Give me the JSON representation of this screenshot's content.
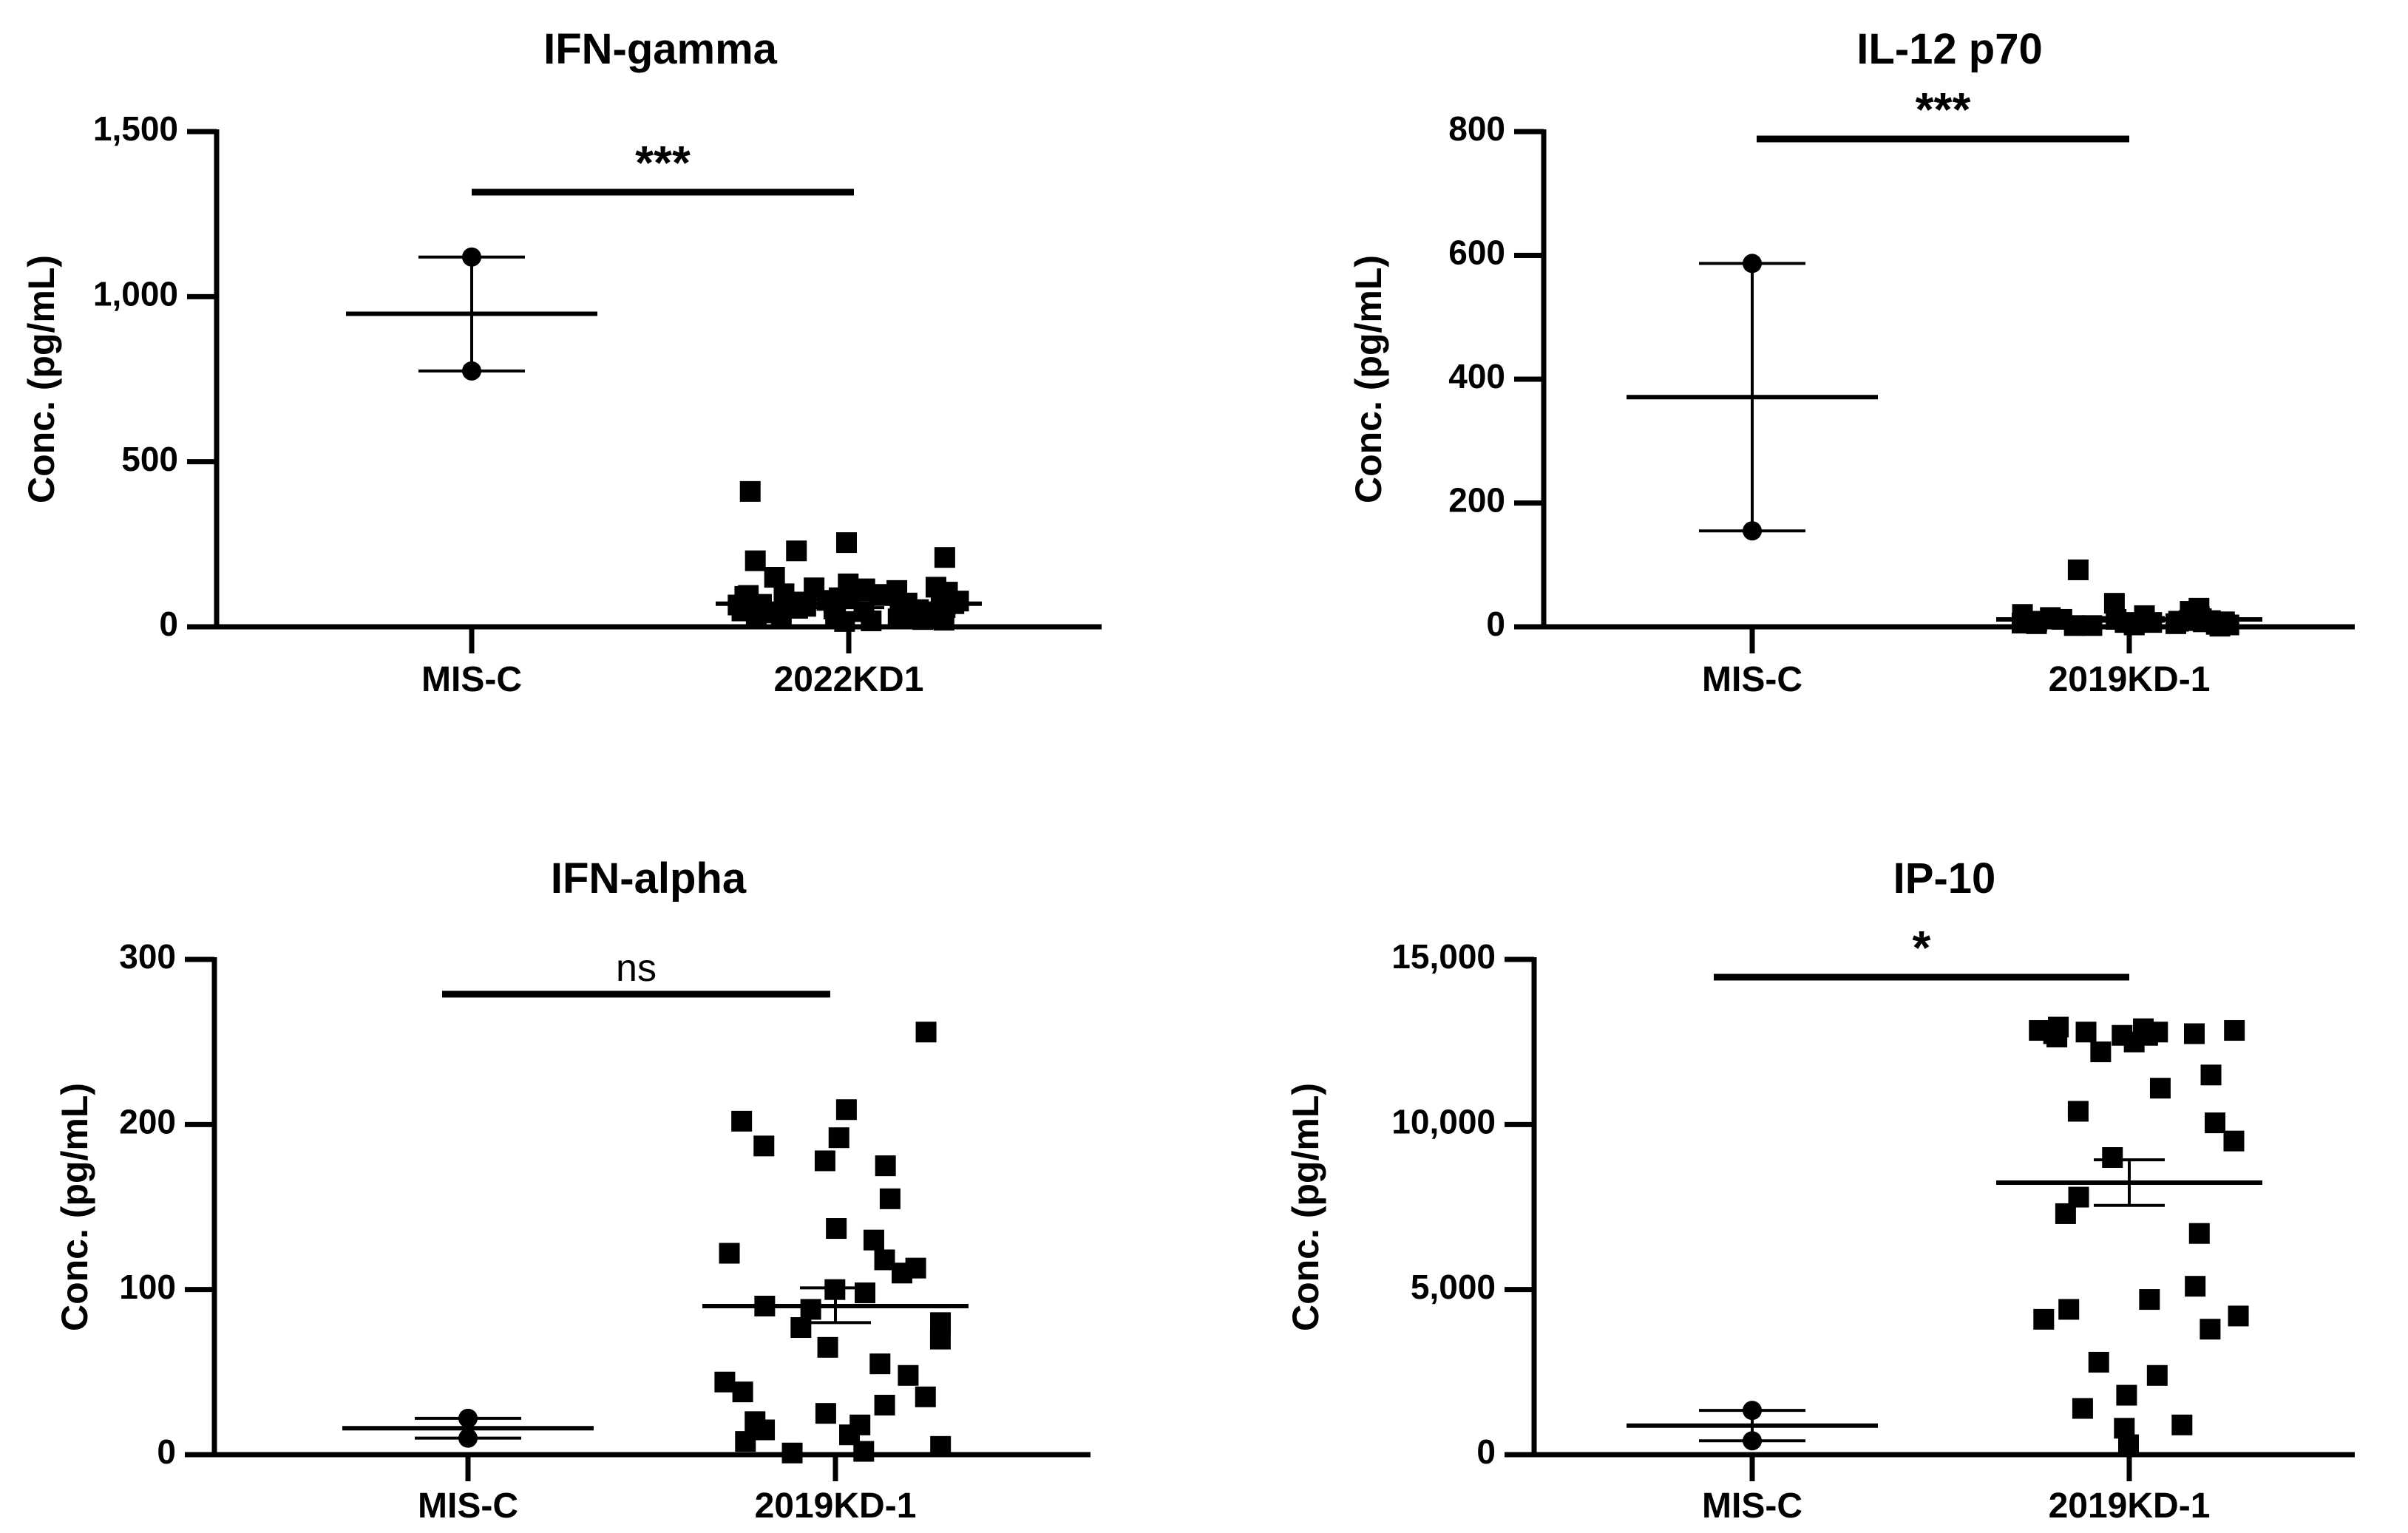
{
  "figure": {
    "background": "#ffffff",
    "ink": "#000000"
  },
  "chart_data": [
    {
      "type": "scatter",
      "title": "IFN-gamma",
      "xlabel": "",
      "ylabel": "Conc. (pg/mL)",
      "ylim": [
        0,
        1500
      ],
      "yticks": [
        0,
        500,
        1000,
        1500
      ],
      "ytick_labels": [
        "0",
        "500",
        "1,000",
        "1,500"
      ],
      "categories": [
        "MIS-C",
        "2022KD1"
      ],
      "significance": "***",
      "groups": [
        {
          "name": "MIS-C",
          "marker": "circle",
          "mean": 948,
          "error_low": 775,
          "error_high": 1120,
          "values": [
            1120,
            775
          ]
        },
        {
          "name": "2022KD1",
          "marker": "square",
          "mean": 70,
          "error_low": 58,
          "error_high": 82,
          "values": [
            410,
            255,
            230,
            210,
            200,
            150,
            130,
            120,
            118,
            115,
            110,
            105,
            100,
            98,
            95,
            92,
            90,
            88,
            85,
            82,
            80,
            78,
            75,
            72,
            70,
            68,
            66,
            64,
            62,
            60,
            58,
            56,
            54,
            52,
            50,
            48,
            46,
            44,
            42,
            40,
            38,
            36,
            34,
            32,
            30,
            28,
            26,
            24,
            22,
            20,
            18,
            16
          ]
        }
      ]
    },
    {
      "type": "scatter",
      "title": "IL-12 p70",
      "xlabel": "",
      "ylabel": "Conc. (pg/mL)",
      "ylim": [
        0,
        800
      ],
      "yticks": [
        0,
        200,
        400,
        600,
        800
      ],
      "ytick_labels": [
        "0",
        "200",
        "400",
        "600",
        "800"
      ],
      "categories": [
        "MIS-C",
        "2019KD-1"
      ],
      "significance": "***",
      "groups": [
        {
          "name": "MIS-C",
          "marker": "circle",
          "mean": 371,
          "error_low": 155,
          "error_high": 587,
          "values": [
            587,
            155
          ]
        },
        {
          "name": "2019KD-1",
          "marker": "square",
          "mean": 12,
          "error_low": 9,
          "error_high": 15,
          "values": [
            92,
            38,
            30,
            25,
            20,
            18,
            16,
            15,
            14,
            13,
            12,
            12,
            11,
            10,
            10,
            9,
            9,
            8,
            8,
            7,
            7,
            6,
            6,
            5,
            5,
            4,
            4,
            3,
            3,
            2,
            2,
            1
          ]
        }
      ]
    },
    {
      "type": "scatter",
      "title": "IFN-alpha",
      "xlabel": "",
      "ylabel": "Conc. (pg/mL)",
      "ylim": [
        0,
        300
      ],
      "yticks": [
        0,
        100,
        200,
        300
      ],
      "ytick_labels": [
        "0",
        "100",
        "200",
        "300"
      ],
      "categories": [
        "MIS-C",
        "2019KD-1"
      ],
      "significance": "ns",
      "groups": [
        {
          "name": "MIS-C",
          "marker": "circle",
          "mean": 16,
          "error_low": 10,
          "error_high": 22,
          "values": [
            22,
            10
          ]
        },
        {
          "name": "2019KD-1",
          "marker": "square",
          "mean": 90,
          "error_low": 80,
          "error_high": 101,
          "values": [
            256,
            209,
            202,
            192,
            187,
            178,
            175,
            155,
            137,
            130,
            122,
            118,
            113,
            110,
            100,
            98,
            90,
            88,
            80,
            77,
            70,
            65,
            55,
            48,
            44,
            38,
            35,
            30,
            25,
            20,
            18,
            15,
            12,
            8,
            5,
            2,
            1
          ]
        }
      ]
    },
    {
      "type": "scatter",
      "title": "IP-10",
      "xlabel": "",
      "ylabel": "Conc. (pg/mL)",
      "ylim": [
        0,
        15000
      ],
      "yticks": [
        0,
        5000,
        10000,
        15000
      ],
      "ytick_labels": [
        "0",
        "5,000",
        "10,000",
        "15,000"
      ],
      "categories": [
        "MIS-C",
        "2019KD-1"
      ],
      "significance": "*",
      "groups": [
        {
          "name": "MIS-C",
          "marker": "circle",
          "mean": 880,
          "error_low": 420,
          "error_high": 1340,
          "values": [
            1340,
            420
          ]
        },
        {
          "name": "2019KD-1",
          "marker": "square",
          "mean": 8240,
          "error_low": 7550,
          "error_high": 8930,
          "values": [
            12950,
            12900,
            12850,
            12850,
            12800,
            12800,
            12750,
            12750,
            12700,
            12700,
            12650,
            12500,
            12200,
            11500,
            11100,
            10400,
            10050,
            9500,
            9000,
            7800,
            7300,
            6700,
            5100,
            4700,
            4400,
            4200,
            4100,
            3800,
            2800,
            2400,
            1800,
            1400,
            900,
            800,
            300
          ]
        }
      ]
    }
  ]
}
